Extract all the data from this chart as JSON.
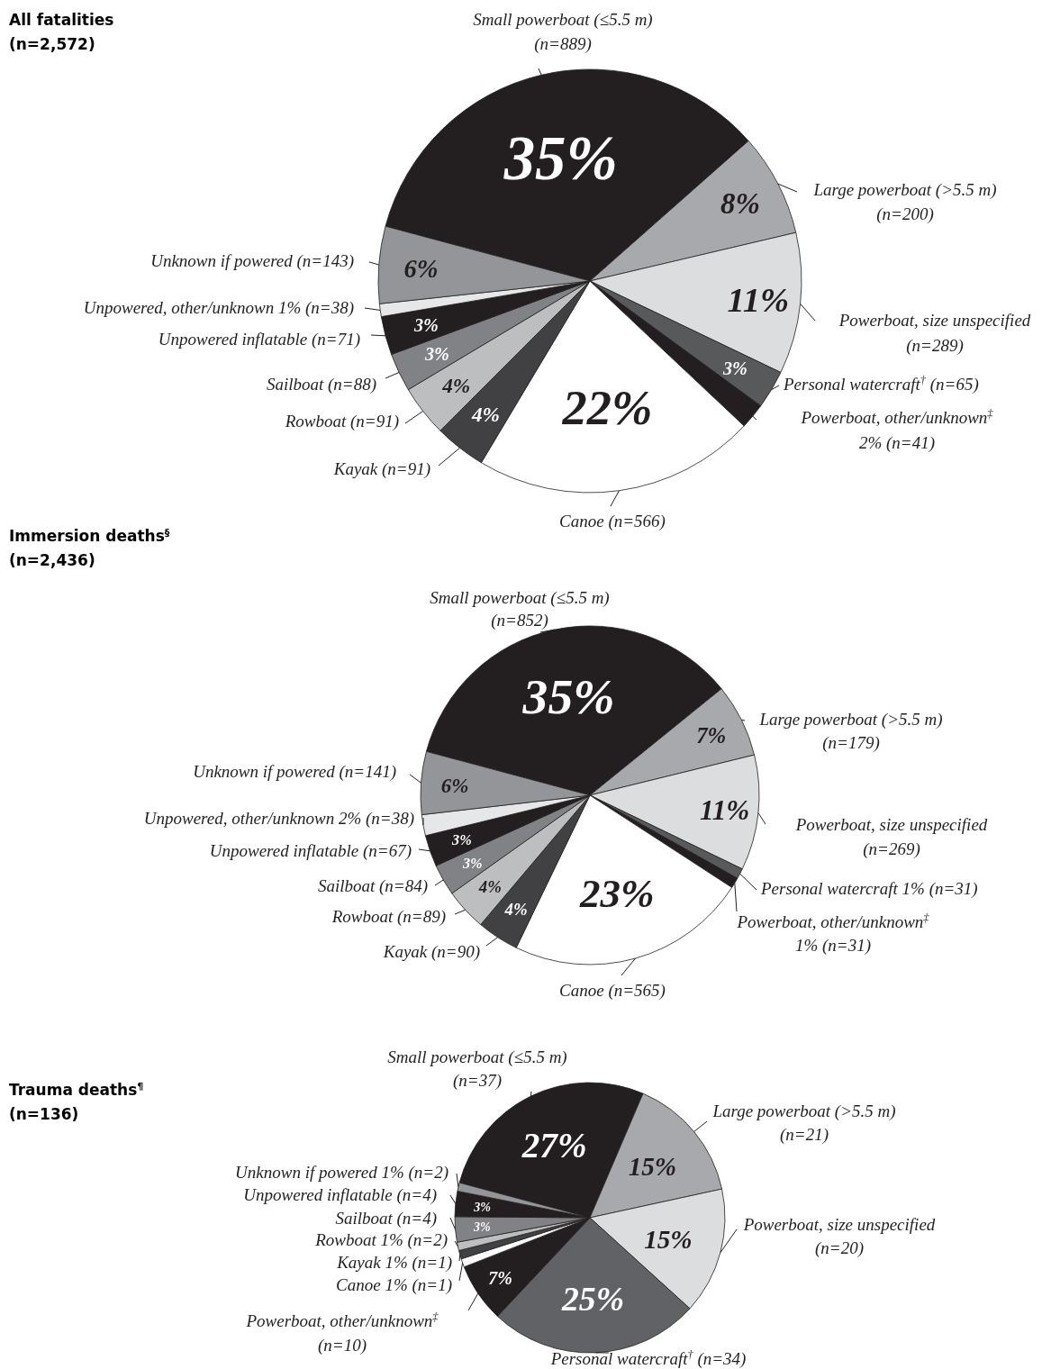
{
  "chart_data": [
    {
      "type": "pie",
      "title": "All fatalities",
      "subtitle": "(n=2,572)",
      "categories": [
        "Small powerboat (≤5.5 m)\n(n=889)",
        "Large powerboat (>5.5 m)\n(n=200)",
        "Powerboat, size unspecified\n(n=289)",
        "Personal watercraft$^{†}$ (n=65)",
        "Powerboat, other/unknown$^{‡}$\n2% (n=41)",
        "Canoe (n=566)",
        "Kayak (n=91)",
        "Rowboat (n=91)",
        "Sailboat (n=88)",
        "Unpowered inflatable (n=71)",
        "Unpowered, other/unknown 1% (n=38)",
        "Unknown if powered (n=143)"
      ],
      "values": [
        35,
        8,
        11,
        3,
        2,
        22,
        4,
        4,
        3,
        3,
        1,
        6
      ],
      "colors": [
        "#231f20",
        "#a7a9ac",
        "#dcdddf",
        "#58595b",
        "#231f20",
        "#ffffff",
        "#414042",
        "#bcbec0",
        "#808285",
        "#231f20",
        "#e6e7e8",
        "#939598"
      ],
      "value_labels": [
        "35%",
        "8%",
        "11%",
        "3%",
        null,
        "22%",
        "4%",
        "4%",
        "3%",
        "3%",
        null,
        "6%"
      ]
    },
    {
      "type": "pie",
      "title": "Immersion deaths$^{§}$",
      "subtitle": "(n=2,436)",
      "categories": [
        "Small powerboat (≤5.5 m)\n(n=852)",
        "Large powerboat (>5.5 m)\n(n=179)",
        "Powerboat, size unspecified\n(n=269)",
        "Personal watercraft 1% (n=31)",
        "Powerboat, other/unknown$^{‡}$\n1% (n=31)",
        "Canoe (n=565)",
        "Kayak (n=90)",
        "Rowboat (n=89)",
        "Sailboat (n=84)",
        "Unpowered inflatable (n=67)",
        "Unpowered, other/unknown 2% (n=38)",
        "Unknown if powered (n=141)"
      ],
      "values": [
        35,
        7,
        11,
        1,
        1,
        23,
        4,
        4,
        3,
        3,
        2,
        6
      ],
      "colors": [
        "#231f20",
        "#a7a9ac",
        "#dcdddf",
        "#58595b",
        "#231f20",
        "#ffffff",
        "#414042",
        "#bcbec0",
        "#808285",
        "#231f20",
        "#e6e7e8",
        "#939598"
      ],
      "value_labels": [
        "35%",
        "7%",
        "11%",
        null,
        null,
        "23%",
        "4%",
        "4%",
        "3%",
        "3%",
        null,
        "6%"
      ]
    },
    {
      "type": "pie",
      "title": "Trauma deaths$^{¶}$",
      "subtitle": "(n=136)",
      "categories": [
        "Small powerboat (≤5.5 m)\n(n=37)",
        "Large powerboat (>5.5 m)\n(n=21)",
        "Powerboat, size unspecified\n(n=20)",
        "Personal watercraft$^{†}$ (n=34)",
        "Powerboat, other/unknown$^{‡}$\n(n=10)",
        "Canoe 1% (n=1)",
        "Kayak 1% (n=1)",
        "Rowboat 1% (n=2)",
        "Sailboat (n=4)",
        "Unpowered inflatable (n=4)",
        "Unknown if powered 1% (n=2)"
      ],
      "values": [
        27,
        15,
        15,
        25,
        7,
        1,
        1,
        1,
        3,
        3,
        1
      ],
      "colors": [
        "#231f20",
        "#a7a9ac",
        "#dcdddf",
        "#616265",
        "#231f20",
        "#ffffff",
        "#414042",
        "#bcbec0",
        "#808285",
        "#231f20",
        "#939598"
      ],
      "value_labels": [
        "27%",
        "15%",
        "15%",
        "25%",
        "7%",
        null,
        null,
        null,
        "3%",
        "3%",
        null
      ]
    }
  ]
}
